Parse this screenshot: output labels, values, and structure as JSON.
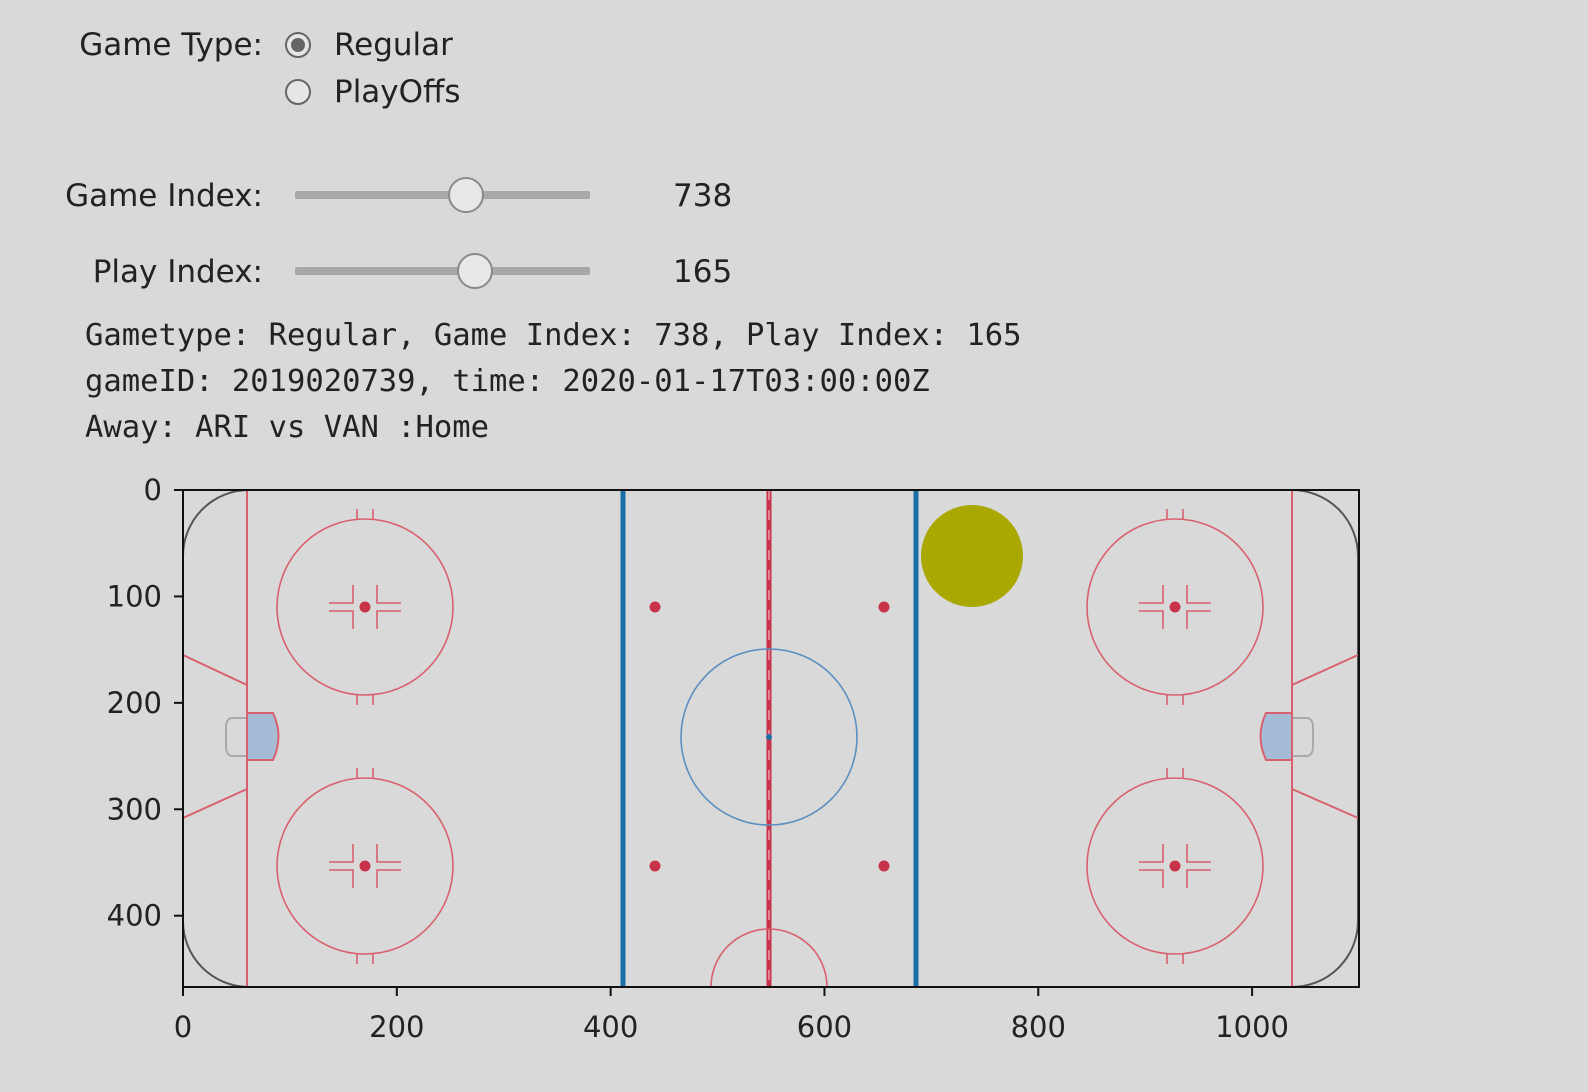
{
  "controls": {
    "game_type_label": "Game Type:",
    "game_type_options": [
      "Regular",
      "PlayOffs"
    ],
    "game_type_selected": "Regular",
    "game_index_label": "Game Index:",
    "game_index_value": "738",
    "game_index_fraction": 0.58,
    "play_index_label": "Play Index:",
    "play_index_value": "165",
    "play_index_fraction": 0.61
  },
  "info": {
    "line1": "Gametype: Regular, Game Index: 738, Play Index: 165",
    "line2": "gameID: 2019020739, time: 2020-01-17T03:00:00Z",
    "line3": "Away: ARI vs VAN :Home"
  },
  "chart_data": {
    "type": "scatter",
    "title": "",
    "xlabel": "",
    "ylabel": "",
    "xlim": [
      0,
      1100
    ],
    "ylim": [
      467,
      0
    ],
    "x_ticks": [
      0,
      200,
      400,
      600,
      800,
      1000
    ],
    "y_ticks": [
      0,
      100,
      200,
      300,
      400
    ],
    "background": "NHL rink image",
    "series": [
      {
        "name": "play",
        "points": [
          {
            "x": 738,
            "y": 62
          }
        ],
        "color": "#a8a800"
      }
    ]
  },
  "colors": {
    "background": "#d9d9d9",
    "rink_red": "#d9606e",
    "rink_blue": "#1a6fa8",
    "event_marker": "#a8a800"
  }
}
